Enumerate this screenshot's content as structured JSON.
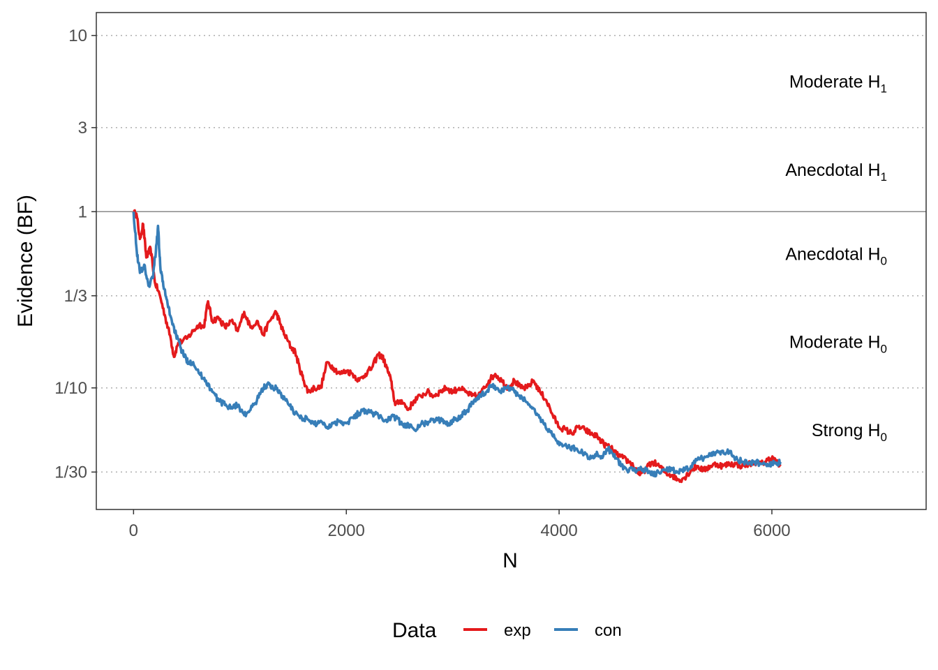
{
  "chart_data": {
    "type": "line",
    "xlabel": "N",
    "ylabel": "Evidence (BF)",
    "xlim": [
      -350,
      7450
    ],
    "ylim_log10": [
      -1.69,
      1.13
    ],
    "y_scale": "log",
    "grid": "dotted horizontal at y ticks",
    "x_ticks": [
      {
        "value": 0,
        "label": "0"
      },
      {
        "value": 2000,
        "label": "2000"
      },
      {
        "value": 4000,
        "label": "4000"
      },
      {
        "value": 6000,
        "label": "6000"
      }
    ],
    "y_ticks": [
      {
        "value": 10,
        "label": "10"
      },
      {
        "value": 3,
        "label": "3"
      },
      {
        "value": 1,
        "label": "1"
      },
      {
        "value": 0.3333,
        "label": "1/3"
      },
      {
        "value": 0.1,
        "label": "1/10"
      },
      {
        "value": 0.0333,
        "label": "1/30"
      }
    ],
    "reference_line": {
      "y": 1,
      "color": "#888888"
    },
    "zones": [
      {
        "label": "Moderate H",
        "sub": "1",
        "y": 5.5
      },
      {
        "label": "Anecdotal H",
        "sub": "1",
        "y": 1.73
      },
      {
        "label": "Anecdotal H",
        "sub": "0",
        "y": 0.577
      },
      {
        "label": "Moderate H",
        "sub": "0",
        "y": 0.183
      },
      {
        "label": "Strong H",
        "sub": "0",
        "y": 0.0577
      }
    ],
    "legend": {
      "title": "Data",
      "position": "bottom"
    },
    "series": [
      {
        "name": "exp",
        "color": "#E41A1C",
        "points": [
          [
            0,
            1.0
          ],
          [
            30,
            0.95
          ],
          [
            60,
            0.7
          ],
          [
            90,
            0.85
          ],
          [
            120,
            0.55
          ],
          [
            160,
            0.62
          ],
          [
            200,
            0.4
          ],
          [
            250,
            0.33
          ],
          [
            300,
            0.25
          ],
          [
            350,
            0.19
          ],
          [
            380,
            0.15
          ],
          [
            420,
            0.18
          ],
          [
            500,
            0.19
          ],
          [
            560,
            0.21
          ],
          [
            620,
            0.23
          ],
          [
            660,
            0.22
          ],
          [
            700,
            0.31
          ],
          [
            740,
            0.24
          ],
          [
            800,
            0.25
          ],
          [
            860,
            0.22
          ],
          [
            920,
            0.24
          ],
          [
            980,
            0.21
          ],
          [
            1040,
            0.27
          ],
          [
            1100,
            0.22
          ],
          [
            1160,
            0.24
          ],
          [
            1220,
            0.2
          ],
          [
            1280,
            0.24
          ],
          [
            1340,
            0.27
          ],
          [
            1380,
            0.23
          ],
          [
            1420,
            0.2
          ],
          [
            1480,
            0.17
          ],
          [
            1520,
            0.16
          ],
          [
            1560,
            0.13
          ],
          [
            1600,
            0.11
          ],
          [
            1640,
            0.095
          ],
          [
            1700,
            0.1
          ],
          [
            1760,
            0.1
          ],
          [
            1820,
            0.14
          ],
          [
            1880,
            0.13
          ],
          [
            1940,
            0.12
          ],
          [
            2000,
            0.125
          ],
          [
            2060,
            0.12
          ],
          [
            2120,
            0.11
          ],
          [
            2180,
            0.12
          ],
          [
            2240,
            0.13
          ],
          [
            2300,
            0.155
          ],
          [
            2340,
            0.15
          ],
          [
            2380,
            0.13
          ],
          [
            2420,
            0.11
          ],
          [
            2460,
            0.08
          ],
          [
            2520,
            0.085
          ],
          [
            2580,
            0.075
          ],
          [
            2640,
            0.085
          ],
          [
            2700,
            0.09
          ],
          [
            2760,
            0.095
          ],
          [
            2820,
            0.09
          ],
          [
            2880,
            0.095
          ],
          [
            2940,
            0.1
          ],
          [
            3000,
            0.095
          ],
          [
            3060,
            0.1
          ],
          [
            3120,
            0.095
          ],
          [
            3180,
            0.09
          ],
          [
            3240,
            0.09
          ],
          [
            3300,
            0.1
          ],
          [
            3340,
            0.11
          ],
          [
            3400,
            0.12
          ],
          [
            3460,
            0.11
          ],
          [
            3520,
            0.1
          ],
          [
            3580,
            0.11
          ],
          [
            3640,
            0.1
          ],
          [
            3700,
            0.1
          ],
          [
            3760,
            0.11
          ],
          [
            3820,
            0.095
          ],
          [
            3880,
            0.085
          ],
          [
            3940,
            0.07
          ],
          [
            4000,
            0.06
          ],
          [
            4060,
            0.058
          ],
          [
            4120,
            0.055
          ],
          [
            4180,
            0.06
          ],
          [
            4240,
            0.058
          ],
          [
            4300,
            0.055
          ],
          [
            4360,
            0.053
          ],
          [
            4420,
            0.048
          ],
          [
            4480,
            0.046
          ],
          [
            4540,
            0.042
          ],
          [
            4600,
            0.04
          ],
          [
            4660,
            0.038
          ],
          [
            4720,
            0.035
          ],
          [
            4760,
            0.032
          ],
          [
            4820,
            0.035
          ],
          [
            4880,
            0.038
          ],
          [
            4940,
            0.036
          ],
          [
            5000,
            0.033
          ],
          [
            5060,
            0.032
          ],
          [
            5120,
            0.03
          ],
          [
            5180,
            0.031
          ],
          [
            5240,
            0.034
          ],
          [
            5300,
            0.036
          ],
          [
            5360,
            0.034
          ],
          [
            5420,
            0.036
          ],
          [
            5480,
            0.037
          ],
          [
            5540,
            0.036
          ],
          [
            5600,
            0.037
          ],
          [
            5660,
            0.037
          ],
          [
            5720,
            0.036
          ],
          [
            5780,
            0.037
          ],
          [
            5840,
            0.038
          ],
          [
            5900,
            0.037
          ],
          [
            5960,
            0.039
          ],
          [
            6000,
            0.04
          ],
          [
            6040,
            0.038
          ],
          [
            6080,
            0.036
          ]
        ]
      },
      {
        "name": "con",
        "color": "#377EB8",
        "points": [
          [
            0,
            1.0
          ],
          [
            30,
            0.6
          ],
          [
            60,
            0.45
          ],
          [
            100,
            0.5
          ],
          [
            140,
            0.38
          ],
          [
            180,
            0.42
          ],
          [
            210,
            0.6
          ],
          [
            230,
            0.83
          ],
          [
            250,
            0.5
          ],
          [
            280,
            0.38
          ],
          [
            320,
            0.3
          ],
          [
            360,
            0.24
          ],
          [
            400,
            0.2
          ],
          [
            440,
            0.17
          ],
          [
            480,
            0.15
          ],
          [
            520,
            0.14
          ],
          [
            560,
            0.14
          ],
          [
            620,
            0.12
          ],
          [
            680,
            0.11
          ],
          [
            740,
            0.095
          ],
          [
            800,
            0.085
          ],
          [
            860,
            0.08
          ],
          [
            920,
            0.078
          ],
          [
            980,
            0.08
          ],
          [
            1040,
            0.07
          ],
          [
            1100,
            0.075
          ],
          [
            1160,
            0.085
          ],
          [
            1220,
            0.1
          ],
          [
            1260,
            0.105
          ],
          [
            1300,
            0.1
          ],
          [
            1340,
            0.1
          ],
          [
            1400,
            0.09
          ],
          [
            1460,
            0.08
          ],
          [
            1520,
            0.072
          ],
          [
            1580,
            0.068
          ],
          [
            1640,
            0.066
          ],
          [
            1700,
            0.062
          ],
          [
            1760,
            0.065
          ],
          [
            1820,
            0.06
          ],
          [
            1880,
            0.063
          ],
          [
            1940,
            0.065
          ],
          [
            2000,
            0.063
          ],
          [
            2060,
            0.068
          ],
          [
            2120,
            0.072
          ],
          [
            2180,
            0.075
          ],
          [
            2240,
            0.072
          ],
          [
            2300,
            0.07
          ],
          [
            2360,
            0.065
          ],
          [
            2420,
            0.068
          ],
          [
            2480,
            0.067
          ],
          [
            2540,
            0.06
          ],
          [
            2600,
            0.062
          ],
          [
            2660,
            0.058
          ],
          [
            2720,
            0.063
          ],
          [
            2780,
            0.064
          ],
          [
            2840,
            0.066
          ],
          [
            2900,
            0.065
          ],
          [
            2960,
            0.063
          ],
          [
            3020,
            0.066
          ],
          [
            3080,
            0.07
          ],
          [
            3140,
            0.075
          ],
          [
            3200,
            0.085
          ],
          [
            3260,
            0.09
          ],
          [
            3320,
            0.095
          ],
          [
            3380,
            0.105
          ],
          [
            3440,
            0.095
          ],
          [
            3500,
            0.1
          ],
          [
            3560,
            0.098
          ],
          [
            3620,
            0.09
          ],
          [
            3680,
            0.085
          ],
          [
            3740,
            0.078
          ],
          [
            3800,
            0.07
          ],
          [
            3860,
            0.062
          ],
          [
            3920,
            0.056
          ],
          [
            3980,
            0.05
          ],
          [
            4040,
            0.047
          ],
          [
            4100,
            0.046
          ],
          [
            4160,
            0.045
          ],
          [
            4220,
            0.043
          ],
          [
            4280,
            0.04
          ],
          [
            4340,
            0.042
          ],
          [
            4400,
            0.041
          ],
          [
            4460,
            0.045
          ],
          [
            4520,
            0.042
          ],
          [
            4580,
            0.036
          ],
          [
            4640,
            0.034
          ],
          [
            4700,
            0.034
          ],
          [
            4760,
            0.035
          ],
          [
            4820,
            0.034
          ],
          [
            4880,
            0.032
          ],
          [
            4940,
            0.033
          ],
          [
            5000,
            0.034
          ],
          [
            5060,
            0.035
          ],
          [
            5120,
            0.033
          ],
          [
            5180,
            0.034
          ],
          [
            5240,
            0.036
          ],
          [
            5300,
            0.039
          ],
          [
            5360,
            0.04
          ],
          [
            5420,
            0.042
          ],
          [
            5480,
            0.043
          ],
          [
            5540,
            0.044
          ],
          [
            5600,
            0.043
          ],
          [
            5660,
            0.04
          ],
          [
            5720,
            0.038
          ],
          [
            5780,
            0.037
          ],
          [
            5840,
            0.038
          ],
          [
            5900,
            0.037
          ],
          [
            5960,
            0.037
          ],
          [
            6000,
            0.037
          ],
          [
            6040,
            0.037
          ],
          [
            6080,
            0.038
          ]
        ]
      }
    ]
  }
}
